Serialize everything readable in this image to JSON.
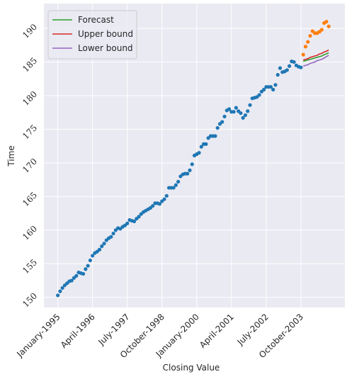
{
  "chart_data": {
    "type": "line",
    "xlabel": "Closing Value",
    "ylabel": "Time",
    "xlim": [
      "1994-07",
      "2005-05"
    ],
    "xticks": [
      {
        "value": "1995-01",
        "label": "January-1995"
      },
      {
        "value": "1996-04",
        "label": "April-1996"
      },
      {
        "value": "1997-07",
        "label": "July-1997"
      },
      {
        "value": "1998-10",
        "label": "October-1998"
      },
      {
        "value": "2000-01",
        "label": "January-2000"
      },
      {
        "value": "2001-04",
        "label": "April-2001"
      },
      {
        "value": "2002-07",
        "label": "July-2002"
      },
      {
        "value": "2003-10",
        "label": "October-2003"
      }
    ],
    "ylim": [
      148.5,
      193.7
    ],
    "yticks": [
      150,
      155,
      160,
      165,
      170,
      175,
      180,
      185,
      190
    ],
    "grid": true,
    "legend": "upper left",
    "series": [
      {
        "marker": "dots",
        "color": "#1f77b4",
        "x": [
          "1995-01",
          "1995-02",
          "1995-03",
          "1995-04",
          "1995-05",
          "1995-06",
          "1995-07",
          "1995-08",
          "1995-09",
          "1995-10",
          "1995-11",
          "1995-12",
          "1996-01",
          "1996-02",
          "1996-03",
          "1996-04",
          "1996-05",
          "1996-06",
          "1996-07",
          "1996-08",
          "1996-09",
          "1996-10",
          "1996-11",
          "1996-12",
          "1997-01",
          "1997-02",
          "1997-03",
          "1997-04",
          "1997-05",
          "1997-06",
          "1997-07",
          "1997-08",
          "1997-09",
          "1997-10",
          "1997-11",
          "1997-12",
          "1998-01",
          "1998-02",
          "1998-03",
          "1998-04",
          "1998-05",
          "1998-06",
          "1998-07",
          "1998-08",
          "1998-09",
          "1998-10",
          "1998-11",
          "1998-12",
          "1999-01",
          "1999-02",
          "1999-03",
          "1999-04",
          "1999-05",
          "1999-06",
          "1999-07",
          "1999-08",
          "1999-09",
          "1999-10",
          "1999-11",
          "1999-12",
          "2000-01",
          "2000-02",
          "2000-03",
          "2000-04",
          "2000-05",
          "2000-06",
          "2000-07",
          "2000-08",
          "2000-09",
          "2000-10",
          "2000-11",
          "2000-12",
          "2001-01",
          "2001-02",
          "2001-03",
          "2001-04",
          "2001-05",
          "2001-06",
          "2001-07",
          "2001-08",
          "2001-09",
          "2001-10",
          "2001-11",
          "2001-12",
          "2002-01",
          "2002-02",
          "2002-03",
          "2002-04",
          "2002-05",
          "2002-06",
          "2002-07",
          "2002-08",
          "2002-09",
          "2002-10",
          "2002-11",
          "2002-12",
          "2003-01",
          "2003-02",
          "2003-03",
          "2003-04",
          "2003-05",
          "2003-06",
          "2003-07",
          "2003-08",
          "2003-09",
          "2003-10"
        ],
        "values": [
          150.3,
          150.9,
          151.4,
          151.8,
          152.1,
          152.4,
          152.5,
          152.9,
          153.2,
          153.7,
          153.6,
          153.5,
          154.2,
          154.7,
          155.5,
          156.2,
          156.6,
          156.8,
          157.1,
          157.6,
          158.0,
          158.5,
          158.8,
          159.0,
          159.5,
          160.0,
          160.3,
          160.2,
          160.5,
          160.7,
          161.0,
          161.5,
          161.4,
          161.3,
          161.7,
          162.0,
          162.4,
          162.7,
          162.9,
          163.1,
          163.3,
          163.6,
          164.0,
          164.0,
          163.9,
          164.3,
          164.6,
          165.1,
          166.3,
          166.3,
          166.3,
          166.7,
          167.2,
          168.0,
          168.3,
          168.4,
          168.4,
          168.9,
          169.8,
          171.1,
          171.3,
          171.5,
          172.4,
          172.8,
          172.8,
          173.7,
          174.0,
          174.0,
          174.0,
          175.2,
          175.8,
          176.1,
          176.9,
          177.8,
          178.0,
          177.6,
          177.6,
          178.2,
          177.7,
          177.4,
          176.7,
          177.1,
          177.7,
          178.6,
          179.6,
          179.7,
          179.8,
          180.1,
          180.6,
          180.9,
          181.3,
          181.3,
          181.3,
          180.9,
          181.6,
          183.1,
          184.1,
          183.5,
          183.6,
          183.8,
          184.4,
          185.1,
          185.0,
          184.5,
          184.3,
          184.2
        ]
      },
      {
        "marker": "dots",
        "color": "#ff7f0e",
        "x": [
          "2003-11",
          "2003-12",
          "2004-01",
          "2004-02",
          "2004-03",
          "2004-04",
          "2004-05",
          "2004-06",
          "2004-07",
          "2004-08",
          "2004-09",
          "2004-10"
        ],
        "values": [
          186.1,
          187.3,
          188.0,
          188.9,
          189.6,
          189.3,
          189.3,
          189.5,
          189.8,
          190.8,
          191.0,
          190.3
        ]
      },
      {
        "name": "Forecast",
        "marker": "line",
        "color": "#2ca02c",
        "x": [
          "2003-11",
          "2003-12",
          "2004-01",
          "2004-02",
          "2004-03",
          "2004-04",
          "2004-05",
          "2004-06",
          "2004-07",
          "2004-08",
          "2004-09",
          "2004-10"
        ],
        "values": [
          185.1,
          185.2,
          185.3,
          185.4,
          185.5,
          185.6,
          185.7,
          185.8,
          185.9,
          186.1,
          186.2,
          186.4
        ]
      },
      {
        "name": "Upper bound",
        "marker": "line",
        "color": "#d62728",
        "x": [
          "2003-11",
          "2003-12",
          "2004-01",
          "2004-02",
          "2004-03",
          "2004-04",
          "2004-05",
          "2004-06",
          "2004-07",
          "2004-08",
          "2004-09",
          "2004-10"
        ],
        "values": [
          185.3,
          185.4,
          185.5,
          185.7,
          185.8,
          185.9,
          186.0,
          186.2,
          186.3,
          186.5,
          186.6,
          186.8
        ]
      },
      {
        "name": "Lower bound",
        "marker": "line",
        "color": "#9467bd",
        "x": [
          "2003-11",
          "2003-12",
          "2004-01",
          "2004-02",
          "2004-03",
          "2004-04",
          "2004-05",
          "2004-06",
          "2004-07",
          "2004-08",
          "2004-09",
          "2004-10"
        ],
        "values": [
          184.4,
          184.5,
          184.6,
          184.8,
          184.9,
          185.0,
          185.2,
          185.3,
          185.4,
          185.6,
          185.8,
          186.0
        ]
      }
    ]
  }
}
